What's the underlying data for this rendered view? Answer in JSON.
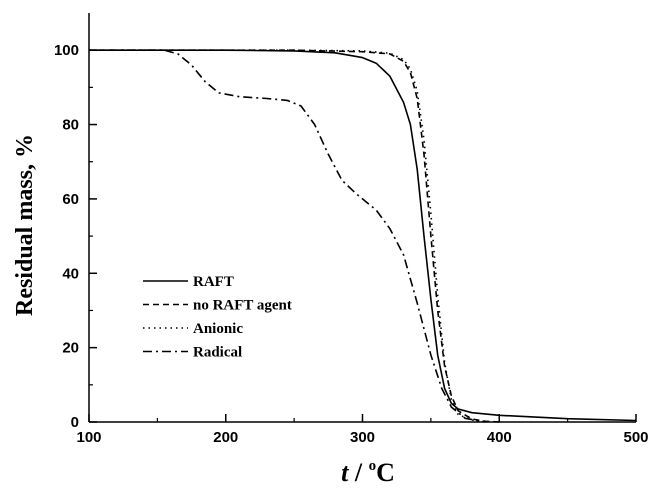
{
  "chart_data": {
    "type": "line",
    "title": "",
    "xlabel_italic": "t",
    "xlabel_rest": " / ",
    "xlabel_sup": "o",
    "xlabel_unit": "C",
    "ylabel": "Residual mass, %",
    "xlim": [
      100,
      500
    ],
    "ylim": [
      0,
      110
    ],
    "x_ticks": [
      100,
      200,
      300,
      400,
      500
    ],
    "y_ticks": [
      0,
      20,
      40,
      60,
      80,
      100
    ],
    "grid": false,
    "legend_position": "lower-left",
    "series": [
      {
        "name": "RAFT",
        "dash": "solid",
        "points": [
          [
            100,
            100
          ],
          [
            200,
            100
          ],
          [
            250,
            99.8
          ],
          [
            280,
            99.3
          ],
          [
            300,
            98
          ],
          [
            310,
            96.5
          ],
          [
            320,
            93
          ],
          [
            330,
            86
          ],
          [
            335,
            80
          ],
          [
            340,
            68
          ],
          [
            345,
            50
          ],
          [
            350,
            33
          ],
          [
            355,
            18
          ],
          [
            360,
            9
          ],
          [
            365,
            5
          ],
          [
            370,
            3.5
          ],
          [
            380,
            2.5
          ],
          [
            400,
            1.8
          ],
          [
            450,
            0.9
          ],
          [
            500,
            0.4
          ]
        ]
      },
      {
        "name": "no RAFT agent",
        "dash": "6,4",
        "points": [
          [
            100,
            100
          ],
          [
            250,
            100
          ],
          [
            300,
            99.6
          ],
          [
            320,
            99
          ],
          [
            330,
            97
          ],
          [
            335,
            94
          ],
          [
            340,
            87
          ],
          [
            345,
            72
          ],
          [
            350,
            50
          ],
          [
            355,
            30
          ],
          [
            360,
            15
          ],
          [
            365,
            7
          ],
          [
            370,
            3
          ],
          [
            380,
            0.8
          ],
          [
            390,
            0.2
          ],
          [
            400,
            0
          ]
        ]
      },
      {
        "name": "Anionic",
        "dash": "1.5,4",
        "points": [
          [
            100,
            100
          ],
          [
            250,
            100
          ],
          [
            300,
            99.8
          ],
          [
            320,
            99.2
          ],
          [
            330,
            97.5
          ],
          [
            335,
            95
          ],
          [
            340,
            89
          ],
          [
            345,
            76
          ],
          [
            350,
            56
          ],
          [
            355,
            34
          ],
          [
            360,
            16
          ],
          [
            365,
            6
          ],
          [
            370,
            2
          ],
          [
            380,
            0.5
          ],
          [
            390,
            0
          ]
        ]
      },
      {
        "name": "Radical",
        "dash": "9,4,2,4",
        "points": [
          [
            100,
            100
          ],
          [
            155,
            100
          ],
          [
            165,
            99
          ],
          [
            175,
            96
          ],
          [
            185,
            91.5
          ],
          [
            195,
            88.5
          ],
          [
            210,
            87.5
          ],
          [
            230,
            87
          ],
          [
            245,
            86.5
          ],
          [
            255,
            85
          ],
          [
            265,
            80
          ],
          [
            275,
            72
          ],
          [
            285,
            65
          ],
          [
            295,
            61.5
          ],
          [
            310,
            57
          ],
          [
            320,
            52
          ],
          [
            330,
            45
          ],
          [
            340,
            32
          ],
          [
            350,
            18
          ],
          [
            358,
            9
          ],
          [
            365,
            4
          ],
          [
            375,
            1
          ],
          [
            390,
            0
          ]
        ]
      }
    ]
  }
}
